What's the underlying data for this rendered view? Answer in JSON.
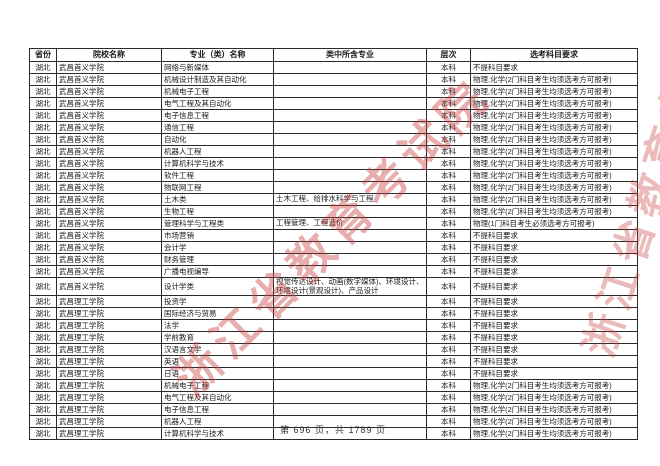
{
  "watermark": {
    "text": "浙江省教育考试院",
    "color": "#c93e3e"
  },
  "footer": {
    "text": "第 696 页，共 1789 页"
  },
  "requirements": {
    "none": "不提科目要求",
    "phys_chem": "物理,化学(2门科目考生均须选考方可报考)",
    "phys_only": "物理(1门科目考生必须选考方可报考)"
  },
  "table": {
    "headers": [
      "省份",
      "院校名称",
      "专业（类）名称",
      "类中所含专业",
      "层次",
      "选考科目要求"
    ],
    "rows": [
      [
        "湖北",
        "武昌首义学院",
        "网络与新媒体",
        "",
        "本科",
        "不提科目要求"
      ],
      [
        "湖北",
        "武昌首义学院",
        "机械设计制造及其自动化",
        "",
        "本科",
        "物理,化学(2门科目考生均须选考方可报考)"
      ],
      [
        "湖北",
        "武昌首义学院",
        "机械电子工程",
        "",
        "本科",
        "物理,化学(2门科目考生均须选考方可报考)"
      ],
      [
        "湖北",
        "武昌首义学院",
        "电气工程及其自动化",
        "",
        "本科",
        "物理,化学(2门科目考生均须选考方可报考)"
      ],
      [
        "湖北",
        "武昌首义学院",
        "电子信息工程",
        "",
        "本科",
        "物理,化学(2门科目考生均须选考方可报考)"
      ],
      [
        "湖北",
        "武昌首义学院",
        "通信工程",
        "",
        "本科",
        "物理,化学(2门科目考生均须选考方可报考)"
      ],
      [
        "湖北",
        "武昌首义学院",
        "自动化",
        "",
        "本科",
        "物理,化学(2门科目考生均须选考方可报考)"
      ],
      [
        "湖北",
        "武昌首义学院",
        "机器人工程",
        "",
        "本科",
        "物理,化学(2门科目考生均须选考方可报考)"
      ],
      [
        "湖北",
        "武昌首义学院",
        "计算机科学与技术",
        "",
        "本科",
        "物理,化学(2门科目考生均须选考方可报考)"
      ],
      [
        "湖北",
        "武昌首义学院",
        "软件工程",
        "",
        "本科",
        "物理,化学(2门科目考生均须选考方可报考)"
      ],
      [
        "湖北",
        "武昌首义学院",
        "物联网工程",
        "",
        "本科",
        "物理,化学(2门科目考生均须选考方可报考)"
      ],
      [
        "湖北",
        "武昌首义学院",
        "土木类",
        "土木工程、给排水科学与工程",
        "本科",
        "物理,化学(2门科目考生均须选考方可报考)"
      ],
      [
        "湖北",
        "武昌首义学院",
        "生物工程",
        "",
        "本科",
        "物理,化学(2门科目考生均须选考方可报考)"
      ],
      [
        "湖北",
        "武昌首义学院",
        "管理科学与工程类",
        "工程管理、工程造价",
        "本科",
        "物理(1门科目考生必须选考方可报考)"
      ],
      [
        "湖北",
        "武昌首义学院",
        "市场营销",
        "",
        "本科",
        "不提科目要求"
      ],
      [
        "湖北",
        "武昌首义学院",
        "会计学",
        "",
        "本科",
        "不提科目要求"
      ],
      [
        "湖北",
        "武昌首义学院",
        "财务管理",
        "",
        "本科",
        "不提科目要求"
      ],
      [
        "湖北",
        "武昌首义学院",
        "广播电视编导",
        "",
        "本科",
        "不提科目要求"
      ],
      [
        "湖北",
        "武昌首义学院",
        "设计学类",
        "视觉传达设计、动画(数字媒体)、环境设计、环境设计(景观设计)、产品设计",
        "本科",
        "不提科目要求"
      ],
      [
        "湖北",
        "武昌理工学院",
        "投资学",
        "",
        "本科",
        "不提科目要求"
      ],
      [
        "湖北",
        "武昌理工学院",
        "国际经济与贸易",
        "",
        "本科",
        "不提科目要求"
      ],
      [
        "湖北",
        "武昌理工学院",
        "法学",
        "",
        "本科",
        "不提科目要求"
      ],
      [
        "湖北",
        "武昌理工学院",
        "学前教育",
        "",
        "本科",
        "不提科目要求"
      ],
      [
        "湖北",
        "武昌理工学院",
        "汉语言文学",
        "",
        "本科",
        "不提科目要求"
      ],
      [
        "湖北",
        "武昌理工学院",
        "英语",
        "",
        "本科",
        "不提科目要求"
      ],
      [
        "湖北",
        "武昌理工学院",
        "日语",
        "",
        "本科",
        "不提科目要求"
      ],
      [
        "湖北",
        "武昌理工学院",
        "机械电子工程",
        "",
        "本科",
        "物理,化学(2门科目考生均须选考方可报考)"
      ],
      [
        "湖北",
        "武昌理工学院",
        "电气工程及其自动化",
        "",
        "本科",
        "物理,化学(2门科目考生均须选考方可报考)"
      ],
      [
        "湖北",
        "武昌理工学院",
        "电子信息工程",
        "",
        "本科",
        "物理,化学(2门科目考生均须选考方可报考)"
      ],
      [
        "湖北",
        "武昌理工学院",
        "机器人工程",
        "",
        "本科",
        "物理,化学(2门科目考生均须选考方可报考)"
      ],
      [
        "湖北",
        "武昌理工学院",
        "计算机科学与技术",
        "",
        "本科",
        "物理,化学(2门科目考生均须选考方可报考)"
      ]
    ]
  }
}
